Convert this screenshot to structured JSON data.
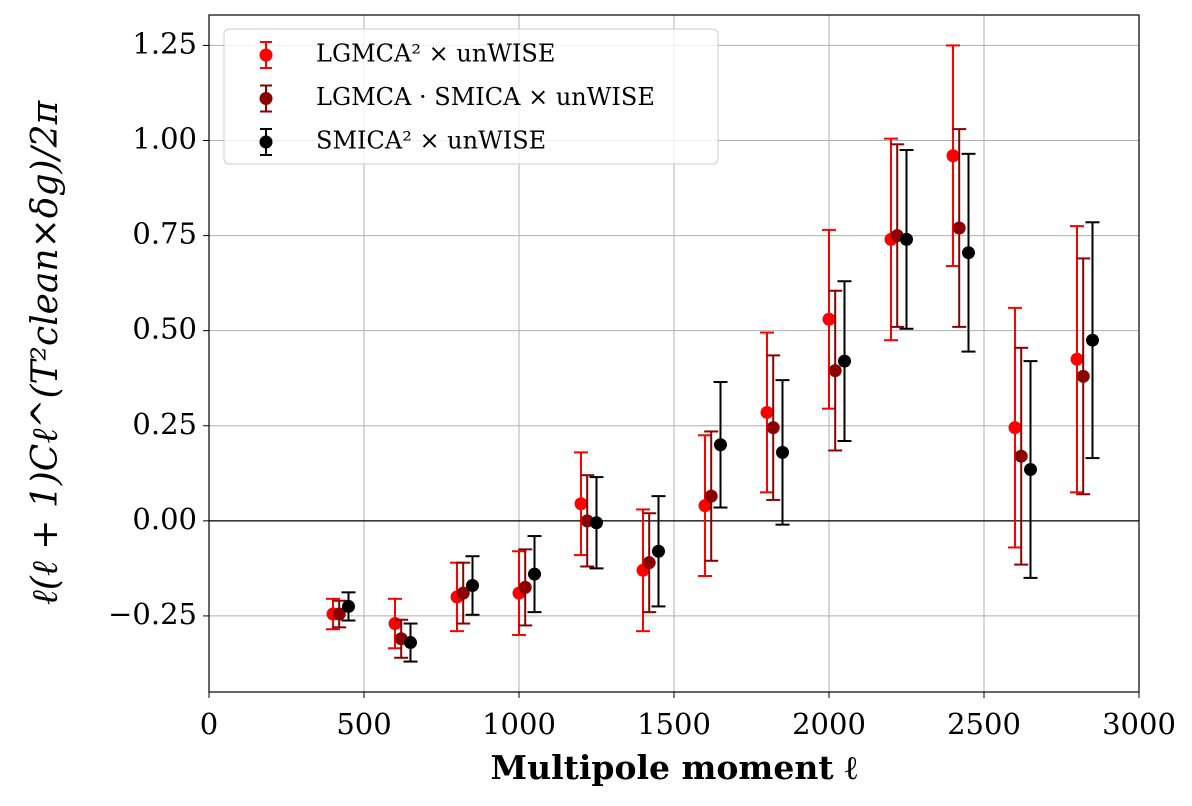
{
  "chart_data": {
    "type": "errorbar",
    "xlabel": "Multipole moment ℓ",
    "ylabel": "ℓ(ℓ + 1)Cℓ^(T²clean×δg)/2π",
    "xlim": [
      0,
      3000
    ],
    "ylim": [
      -0.45,
      1.33
    ],
    "xticks": [
      0,
      500,
      1000,
      1500,
      2000,
      2500,
      3000
    ],
    "yticks": [
      {
        "value": -0.25,
        "label": "−0.25"
      },
      {
        "value": 0,
        "label": "0.00"
      },
      {
        "value": 0.25,
        "label": "0.25"
      },
      {
        "value": 0.5,
        "label": "0.50"
      },
      {
        "value": 0.75,
        "label": "0.75"
      },
      {
        "value": 1.0,
        "label": "1.00"
      },
      {
        "value": 1.25,
        "label": "1.25"
      }
    ],
    "grid": true,
    "hline": 0,
    "legend": "upper left",
    "series": [
      {
        "name": "LGMCA² × unWISE",
        "color": "#ff0000",
        "x": [
          400,
          600,
          800,
          1000,
          1200,
          1400,
          1600,
          1800,
          2000,
          2200,
          2400,
          2600,
          2800
        ],
        "values": [
          -0.245,
          -0.27,
          -0.2,
          -0.19,
          0.045,
          -0.13,
          0.04,
          0.285,
          0.53,
          0.74,
          0.96,
          0.245,
          0.425
        ],
        "errors": [
          0.04,
          0.065,
          0.09,
          0.11,
          0.135,
          0.16,
          0.185,
          0.21,
          0.235,
          0.265,
          0.29,
          0.315,
          0.35
        ]
      },
      {
        "name": "LGMCA · SMICA × unWISE",
        "color": "#8b0000",
        "x": [
          420,
          620,
          820,
          1020,
          1220,
          1420,
          1620,
          1820,
          2020,
          2220,
          2420,
          2620,
          2820
        ],
        "values": [
          -0.245,
          -0.31,
          -0.19,
          -0.175,
          0.0,
          -0.11,
          0.065,
          0.245,
          0.395,
          0.75,
          0.77,
          0.17,
          0.38
        ],
        "errors": [
          0.035,
          0.05,
          0.08,
          0.1,
          0.12,
          0.13,
          0.17,
          0.19,
          0.21,
          0.24,
          0.26,
          0.285,
          0.31
        ]
      },
      {
        "name": "SMICA² × unWISE",
        "color": "#000000",
        "x": [
          450,
          650,
          850,
          1050,
          1250,
          1450,
          1650,
          1850,
          2050,
          2250,
          2450,
          2650,
          2850
        ],
        "values": [
          -0.225,
          -0.32,
          -0.17,
          -0.14,
          -0.005,
          -0.08,
          0.2,
          0.18,
          0.42,
          0.74,
          0.705,
          0.135,
          0.475
        ],
        "errors": [
          0.037,
          0.05,
          0.077,
          0.1,
          0.12,
          0.145,
          0.165,
          0.19,
          0.21,
          0.235,
          0.26,
          0.285,
          0.31
        ]
      }
    ]
  }
}
